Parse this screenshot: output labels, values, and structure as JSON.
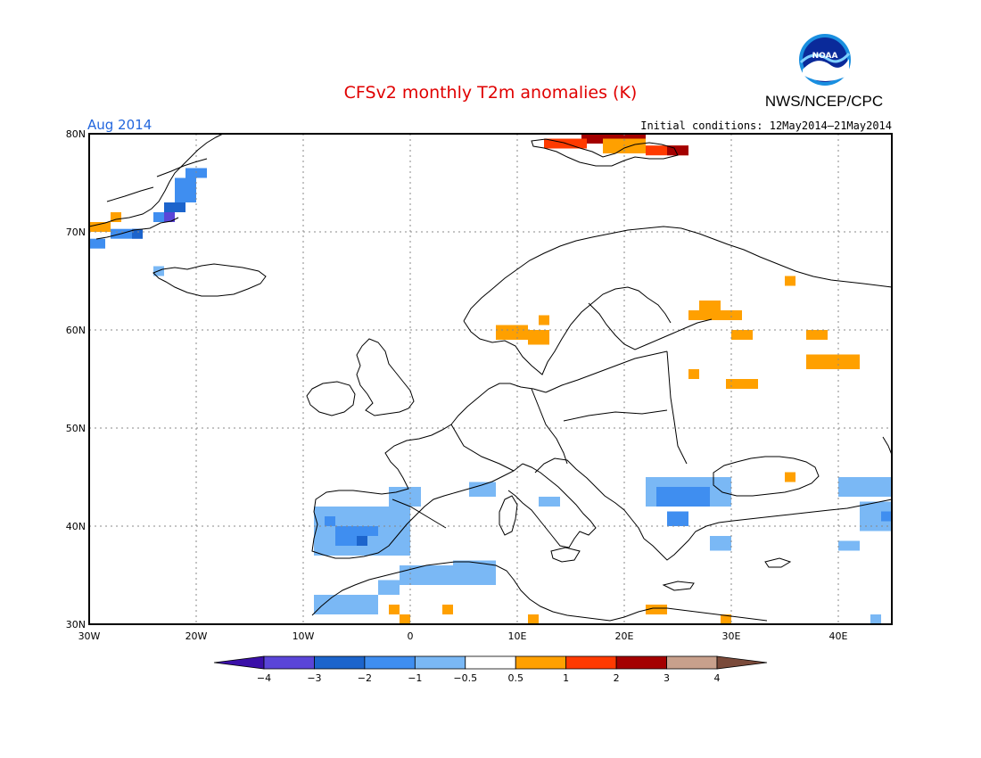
{
  "header": {
    "title": "CFSv2 monthly T2m anomalies (K)",
    "month_label": "Aug 2014",
    "initial_conditions": "Initial conditions: 12May2014–21May2014",
    "org_label": "NWS/NCEP/CPC",
    "logo_text": "NOAA"
  },
  "colors": {
    "title": "#e00000",
    "month": "#2266dd",
    "land_outline": "#000000",
    "grid": "#888888"
  },
  "map": {
    "lon_range": [
      -30,
      45
    ],
    "lat_range": [
      30,
      80
    ],
    "lat_labels": [
      "80N",
      "70N",
      "60N",
      "50N",
      "40N",
      "30N"
    ],
    "lon_labels": [
      "30W",
      "20W",
      "10W",
      "0",
      "10E",
      "20E",
      "30E",
      "40E"
    ]
  },
  "legend": {
    "labels": [
      "−4",
      "−3",
      "−2",
      "−1",
      "−0.5",
      "0.5",
      "1",
      "2",
      "3",
      "4"
    ],
    "colors": [
      "#3a0fa8",
      "#5a45d8",
      "#1c64cc",
      "#3f8ef0",
      "#7ab8f5",
      "#ffffff",
      "#ffa000",
      "#ff3a00",
      "#a40000",
      "#c8a08c",
      "#7a4a3a"
    ]
  },
  "chart_data": {
    "type": "heatmap",
    "title": "CFSv2 monthly T2m anomalies (K)",
    "period": "Aug 2014",
    "units": "K",
    "xlim": [
      -30,
      45
    ],
    "ylim": [
      30,
      80
    ],
    "grid": true,
    "cells": [
      {
        "lon": 16,
        "lat": 79,
        "w": 6,
        "h": 1,
        "cat": "dark-red"
      },
      {
        "lon": 12.5,
        "lat": 78.5,
        "w": 4,
        "h": 1,
        "cat": "red"
      },
      {
        "lon": 18,
        "lat": 78,
        "w": 4,
        "h": 1.5,
        "cat": "orange"
      },
      {
        "lon": 22,
        "lat": 77.8,
        "w": 4,
        "h": 1,
        "cat": "red"
      },
      {
        "lon": 24,
        "lat": 77.8,
        "w": 2,
        "h": 1,
        "cat": "dark-red"
      },
      {
        "lon": -30,
        "lat": 70,
        "w": 2,
        "h": 1,
        "cat": "orange"
      },
      {
        "lon": -28,
        "lat": 71,
        "w": 1,
        "h": 1,
        "cat": "orange"
      },
      {
        "lon": -30,
        "lat": 68.3,
        "w": 1.5,
        "h": 1,
        "cat": "mid-blue"
      },
      {
        "lon": -28,
        "lat": 69.3,
        "w": 3,
        "h": 1,
        "cat": "mid-blue"
      },
      {
        "lon": -26,
        "lat": 69.3,
        "w": 1,
        "h": 1,
        "cat": "blue"
      },
      {
        "lon": -24,
        "lat": 71,
        "w": 2,
        "h": 1,
        "cat": "mid-blue"
      },
      {
        "lon": -23,
        "lat": 71,
        "w": 1,
        "h": 1,
        "cat": "deep-blue"
      },
      {
        "lon": -23,
        "lat": 72,
        "w": 2,
        "h": 1,
        "cat": "blue"
      },
      {
        "lon": -22,
        "lat": 73,
        "w": 2,
        "h": 2.5,
        "cat": "mid-blue"
      },
      {
        "lon": -21,
        "lat": 75.5,
        "w": 2,
        "h": 1,
        "cat": "mid-blue"
      },
      {
        "lon": -24,
        "lat": 65.5,
        "w": 1,
        "h": 1,
        "cat": "light-blue"
      },
      {
        "lon": 8,
        "lat": 59,
        "w": 3,
        "h": 1.5,
        "cat": "orange"
      },
      {
        "lon": 11,
        "lat": 58.5,
        "w": 2,
        "h": 1.5,
        "cat": "orange"
      },
      {
        "lon": 12,
        "lat": 60.5,
        "w": 1,
        "h": 1,
        "cat": "orange"
      },
      {
        "lon": 26,
        "lat": 61,
        "w": 5,
        "h": 1,
        "cat": "orange"
      },
      {
        "lon": 27,
        "lat": 62,
        "w": 2,
        "h": 1,
        "cat": "orange"
      },
      {
        "lon": 30,
        "lat": 59,
        "w": 2,
        "h": 1,
        "cat": "orange"
      },
      {
        "lon": 35,
        "lat": 64.5,
        "w": 1,
        "h": 1,
        "cat": "orange"
      },
      {
        "lon": 37,
        "lat": 59,
        "w": 2,
        "h": 1,
        "cat": "orange"
      },
      {
        "lon": 37,
        "lat": 56,
        "w": 5,
        "h": 1.5,
        "cat": "orange"
      },
      {
        "lon": 40,
        "lat": 56,
        "w": 2,
        "h": 1,
        "cat": "orange"
      },
      {
        "lon": 26,
        "lat": 55,
        "w": 1,
        "h": 1,
        "cat": "orange"
      },
      {
        "lon": 29.5,
        "lat": 54,
        "w": 3,
        "h": 1,
        "cat": "orange"
      },
      {
        "lon": 35,
        "lat": 44.5,
        "w": 1,
        "h": 1,
        "cat": "orange"
      },
      {
        "lon": -9,
        "lat": 32,
        "w": 1,
        "h": 1,
        "cat": "orange"
      },
      {
        "lon": -2,
        "lat": 31,
        "w": 1,
        "h": 1,
        "cat": "orange"
      },
      {
        "lon": -1,
        "lat": 30,
        "w": 1,
        "h": 1,
        "cat": "orange"
      },
      {
        "lon": 3,
        "lat": 31,
        "w": 1,
        "h": 1,
        "cat": "orange"
      },
      {
        "lon": 11,
        "lat": 30,
        "w": 1,
        "h": 1,
        "cat": "orange"
      },
      {
        "lon": 22,
        "lat": 31,
        "w": 2,
        "h": 1,
        "cat": "orange"
      },
      {
        "lon": 29,
        "lat": 30,
        "w": 1,
        "h": 1,
        "cat": "orange"
      },
      {
        "lon": 42,
        "lat": 41.5,
        "w": 1,
        "h": 1,
        "cat": "orange"
      },
      {
        "lon": -9,
        "lat": 37,
        "w": 9,
        "h": 5,
        "cat": "light-blue"
      },
      {
        "lon": -2,
        "lat": 42,
        "w": 3,
        "h": 2,
        "cat": "light-blue"
      },
      {
        "lon": -7,
        "lat": 38,
        "w": 3,
        "h": 2,
        "cat": "mid-blue"
      },
      {
        "lon": -4,
        "lat": 39,
        "w": 1,
        "h": 1,
        "cat": "mid-blue"
      },
      {
        "lon": -5,
        "lat": 38,
        "w": 1,
        "h": 1,
        "cat": "blue"
      },
      {
        "lon": -8,
        "lat": 40,
        "w": 1,
        "h": 1,
        "cat": "mid-blue"
      },
      {
        "lon": -9,
        "lat": 31,
        "w": 6,
        "h": 2,
        "cat": "light-blue"
      },
      {
        "lon": -3,
        "lat": 33,
        "w": 2,
        "h": 1.5,
        "cat": "light-blue"
      },
      {
        "lon": -1,
        "lat": 34,
        "w": 9,
        "h": 2,
        "cat": "light-blue"
      },
      {
        "lon": 4,
        "lat": 35,
        "w": 4,
        "h": 1.5,
        "cat": "light-blue"
      },
      {
        "lon": 5.5,
        "lat": 43,
        "w": 2.5,
        "h": 1.5,
        "cat": "light-blue"
      },
      {
        "lon": 12,
        "lat": 42,
        "w": 2,
        "h": 1,
        "cat": "light-blue"
      },
      {
        "lon": 22,
        "lat": 42,
        "w": 8,
        "h": 3,
        "cat": "light-blue"
      },
      {
        "lon": 23,
        "lat": 42,
        "w": 5,
        "h": 2,
        "cat": "mid-blue"
      },
      {
        "lon": 24,
        "lat": 40,
        "w": 2,
        "h": 1.5,
        "cat": "mid-blue"
      },
      {
        "lon": 28,
        "lat": 37.5,
        "w": 2,
        "h": 1.5,
        "cat": "light-blue"
      },
      {
        "lon": 40,
        "lat": 43,
        "w": 5,
        "h": 2,
        "cat": "light-blue"
      },
      {
        "lon": 42,
        "lat": 39.5,
        "w": 3,
        "h": 3,
        "cat": "light-blue"
      },
      {
        "lon": 44,
        "lat": 40.5,
        "w": 1,
        "h": 1,
        "cat": "mid-blue"
      },
      {
        "lon": 40,
        "lat": 37.5,
        "w": 2,
        "h": 1,
        "cat": "light-blue"
      },
      {
        "lon": 43,
        "lat": 30,
        "w": 1,
        "h": 1,
        "cat": "light-blue"
      }
    ]
  }
}
